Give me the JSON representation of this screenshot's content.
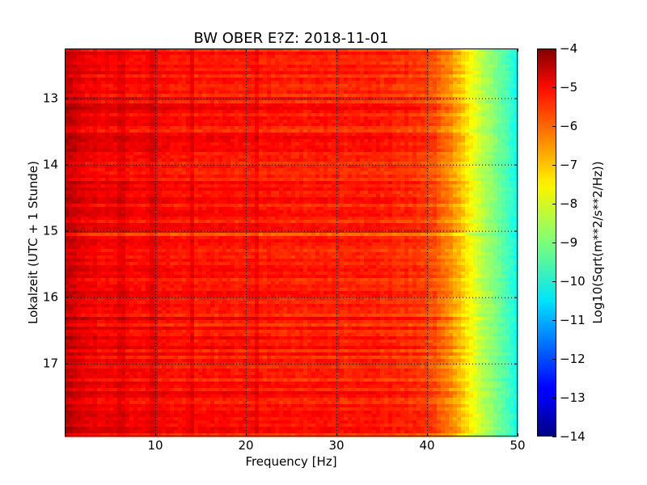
{
  "chart_data": {
    "type": "heatmap",
    "title": "BW OBER E?Z: 2018-11-01",
    "xlabel": "Frequency [Hz]",
    "ylabel": "Lokalzeit (UTC + 1 Stunde)",
    "xlim": [
      0,
      50
    ],
    "ylim": [
      12.25,
      18.1
    ],
    "y_inverted": true,
    "x_ticks": [
      10,
      20,
      30,
      40,
      50
    ],
    "x_tick_labels": [
      "10",
      "20",
      "30",
      "40",
      "50"
    ],
    "y_ticks": [
      13,
      14,
      15,
      16,
      17
    ],
    "y_tick_labels": [
      "13",
      "14",
      "15",
      "16",
      "17"
    ],
    "grid": true,
    "colormap": "jet",
    "colorbar": {
      "label": "Log10(Sqrt(m**2/s**2/Hz))",
      "range": [
        -14,
        -4
      ],
      "ticks": [
        -4,
        -5,
        -6,
        -7,
        -8,
        -9,
        -10,
        -11,
        -12,
        -13,
        -14
      ],
      "tick_labels": [
        "−4",
        "−5",
        "−6",
        "−7",
        "−8",
        "−9",
        "−10",
        "−11",
        "−12",
        "−13",
        "−14"
      ]
    },
    "spectral_profile": {
      "frequency_hz": [
        0,
        1,
        2,
        4,
        6,
        8,
        10,
        15,
        20,
        25,
        30,
        35,
        38,
        40,
        41,
        42,
        43,
        44,
        45,
        46,
        47,
        48,
        49,
        50
      ],
      "level": [
        -4.6,
        -4.85,
        -5.05,
        -5.2,
        -5.3,
        -5.3,
        -5.35,
        -5.45,
        -5.5,
        -5.55,
        -5.55,
        -5.6,
        -5.7,
        -5.85,
        -6.1,
        -6.4,
        -6.8,
        -7.3,
        -7.9,
        -8.4,
        -8.8,
        -9.2,
        -9.6,
        -10.2
      ]
    },
    "persistent_lines_hz": [
      6.2,
      9.8,
      14,
      21.2
    ]
  }
}
